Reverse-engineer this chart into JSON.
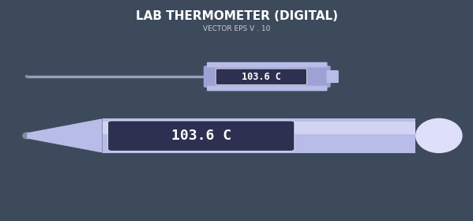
{
  "bg_color": "#3d4a5c",
  "title": "LAB THERMOMETER (DIGITAL)",
  "subtitle": "VECTOR EPS V . 10",
  "title_color": "#ffffff",
  "subtitle_color": "#c8ccd4",
  "thermometer_body_color": "#b8bce8",
  "thermometer_body_color2": "#9da1d4",
  "thermometer_highlight": "#dde0f8",
  "display_bg": "#2d3050",
  "display_text": "103.6 C",
  "display_text_color": "#ffffff",
  "probe_color": "#9a9fb8",
  "probe_tip_color": "#888aa0"
}
